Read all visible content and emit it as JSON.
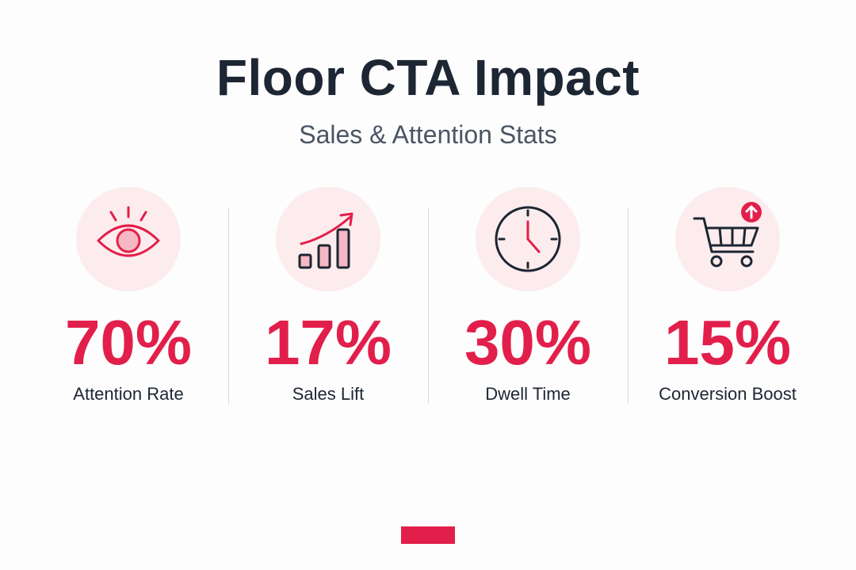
{
  "header": {
    "title": "Floor CTA Impact",
    "subtitle": "Sales & Attention Stats"
  },
  "stats": [
    {
      "icon": "eye-icon",
      "value": "70%",
      "label": "Attention Rate"
    },
    {
      "icon": "rising-bar-chart-icon",
      "value": "17%",
      "label": "Sales Lift"
    },
    {
      "icon": "clock-icon",
      "value": "30%",
      "label": "Dwell Time"
    },
    {
      "icon": "shopping-cart-upload-icon",
      "value": "15%",
      "label": "Conversion Boost"
    }
  ],
  "colors": {
    "accent": "#e21f4b",
    "icon_background": "#fdeced",
    "text_dark": "#1d2633",
    "text_muted": "#4b5563"
  }
}
